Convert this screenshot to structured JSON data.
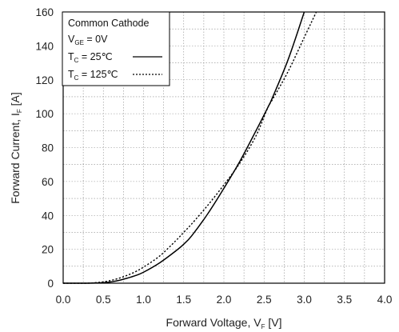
{
  "chart_data": {
    "type": "line",
    "xlabel": {
      "main": "Forward Voltage,  V",
      "sub": "F",
      "unit": " [V]"
    },
    "ylabel": {
      "main": "Forward Current,  I",
      "sub": "F",
      "unit": "  [A]"
    },
    "xlim": [
      0,
      4.0
    ],
    "ylim": [
      0,
      160
    ],
    "x_ticks": [
      "0.0",
      "0.5",
      "1.0",
      "1.5",
      "2.0",
      "2.5",
      "3.0",
      "3.5",
      "4.0"
    ],
    "y_ticks": [
      "0",
      "20",
      "40",
      "60",
      "80",
      "100",
      "120",
      "140",
      "160"
    ],
    "grid": "dotted, minor steps 0.25 V and 10 A",
    "legend": {
      "placement": "top-left",
      "title": "Common Cathode",
      "condition": {
        "main": "V",
        "sub": "GE",
        "rest": " = 0V"
      },
      "entries": [
        {
          "main": "T",
          "sub": "C",
          "rest": " =   25℃",
          "line_style": "solid"
        },
        {
          "main": "T",
          "sub": "C",
          "rest": " = 125℃",
          "line_style": "dotted"
        }
      ]
    },
    "series": [
      {
        "style": "solid",
        "x": [
          0.0,
          0.3,
          0.5,
          0.6,
          0.7,
          0.8,
          0.9,
          1.0,
          1.2,
          1.4,
          1.5,
          1.6,
          1.8,
          2.0,
          2.2,
          2.4,
          2.55,
          2.6,
          2.8,
          3.0
        ],
        "y": [
          0,
          0,
          0.3,
          0.8,
          1.7,
          3,
          4.5,
          6.5,
          12,
          19,
          23,
          28,
          41,
          56,
          72,
          90,
          104,
          109,
          132,
          160
        ]
      },
      {
        "style": "dotted",
        "x": [
          0.0,
          0.3,
          0.4,
          0.5,
          0.6,
          0.7,
          0.8,
          0.9,
          1.0,
          1.2,
          1.4,
          1.5,
          1.6,
          1.8,
          2.0,
          2.2,
          2.4,
          2.55,
          2.6,
          2.8,
          3.0,
          3.15
        ],
        "y": [
          0,
          0,
          0.3,
          0.8,
          1.7,
          3,
          4.7,
          6.8,
          9.5,
          16,
          25,
          30,
          35,
          46,
          58,
          71,
          87,
          104,
          108,
          125,
          145,
          160
        ]
      }
    ]
  }
}
